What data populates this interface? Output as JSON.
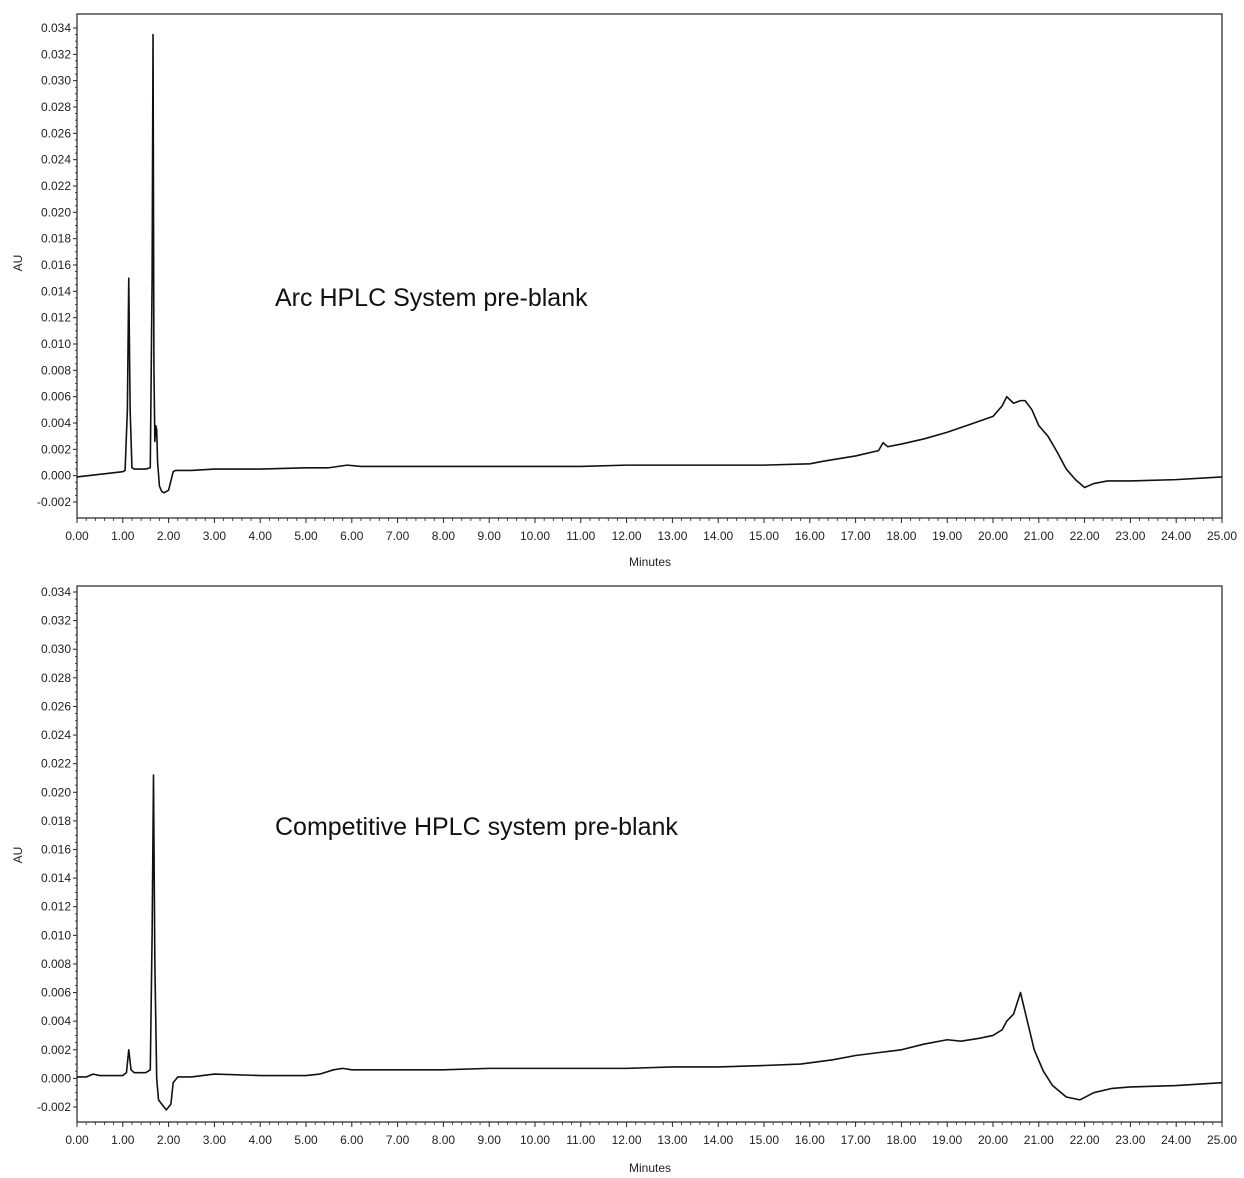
{
  "chart_data": [
    {
      "type": "line",
      "annotation": "Arc HPLC System pre-blank",
      "xlabel": "Minutes",
      "ylabel": "AU",
      "xlim": [
        0,
        25
      ],
      "ylim": [
        -0.003,
        0.034
      ],
      "x_ticks": [
        "0.00",
        "1.00",
        "2.00",
        "3.00",
        "4.00",
        "5.00",
        "6.00",
        "7.00",
        "8.00",
        "9.00",
        "10.00",
        "11.00",
        "12.00",
        "13.00",
        "14.00",
        "15.00",
        "16.00",
        "17.00",
        "18.00",
        "19.00",
        "20.00",
        "21.00",
        "22.00",
        "23.00",
        "24.00",
        "25.00"
      ],
      "y_ticks": [
        "0.034",
        "0.032",
        "0.030",
        "0.028",
        "0.026",
        "0.024",
        "0.022",
        "0.020",
        "0.018",
        "0.016",
        "0.014",
        "0.012",
        "0.010",
        "0.008",
        "0.006",
        "0.004",
        "0.002",
        "0.000",
        "-0.002"
      ],
      "series": [
        {
          "x": [
            0,
            0.5,
            1.0,
            1.05,
            1.1,
            1.13,
            1.16,
            1.2,
            1.25,
            1.5,
            1.6,
            1.64,
            1.66,
            1.68,
            1.7,
            1.72,
            1.74,
            1.76,
            1.8,
            1.85,
            1.9,
            2.0,
            2.1,
            2.15,
            2.2,
            2.5,
            3.0,
            4.0,
            5.0,
            5.5,
            5.9,
            6.2,
            7,
            8,
            9,
            10,
            11,
            12,
            13,
            14,
            15,
            16,
            16.3,
            17,
            17.5,
            17.6,
            17.7,
            18,
            18.5,
            19,
            19.5,
            20,
            20.2,
            20.3,
            20.45,
            20.6,
            20.7,
            20.85,
            21.0,
            21.2,
            21.4,
            21.6,
            21.8,
            22.0,
            22.2,
            22.5,
            23,
            24,
            25
          ],
          "y": [
            -0.0001,
            0.0001,
            0.0003,
            0.0004,
            0.005,
            0.015,
            0.005,
            0.0006,
            0.0005,
            0.0005,
            0.0006,
            0.015,
            0.0335,
            0.008,
            0.0026,
            0.0038,
            0.0035,
            0.001,
            -0.0008,
            -0.0012,
            -0.0013,
            -0.0011,
            0.0003,
            0.0004,
            0.0004,
            0.0004,
            0.0005,
            0.0005,
            0.0006,
            0.0006,
            0.0008,
            0.0007,
            0.0007,
            0.0007,
            0.0007,
            0.0007,
            0.0007,
            0.0008,
            0.0008,
            0.0008,
            0.0008,
            0.0009,
            0.0011,
            0.0015,
            0.0019,
            0.0025,
            0.0022,
            0.0024,
            0.0028,
            0.0033,
            0.0039,
            0.0045,
            0.0053,
            0.006,
            0.0055,
            0.0057,
            0.0057,
            0.005,
            0.0038,
            0.003,
            0.0018,
            0.0005,
            -0.0003,
            -0.0009,
            -0.0006,
            -0.0004,
            -0.0004,
            -0.0003,
            -0.0001
          ]
        }
      ]
    },
    {
      "type": "line",
      "annotation": "Competitive HPLC system pre-blank",
      "xlabel": "Minutes",
      "ylabel": "AU",
      "xlim": [
        0,
        25
      ],
      "ylim": [
        -0.003,
        0.034
      ],
      "x_ticks": [
        "0.00",
        "1.00",
        "2.00",
        "3.00",
        "4.00",
        "5.00",
        "6.00",
        "7.00",
        "8.00",
        "9.00",
        "10.00",
        "11.00",
        "12.00",
        "13.00",
        "14.00",
        "15.00",
        "16.00",
        "17.00",
        "18.00",
        "19.00",
        "20.00",
        "21.00",
        "22.00",
        "23.00",
        "24.00",
        "25.00"
      ],
      "y_ticks": [
        "0.034",
        "0.032",
        "0.030",
        "0.028",
        "0.026",
        "0.024",
        "0.022",
        "0.020",
        "0.018",
        "0.016",
        "0.014",
        "0.012",
        "0.010",
        "0.008",
        "0.006",
        "0.004",
        "0.002",
        "0.000",
        "-0.002"
      ],
      "series": [
        {
          "x": [
            0,
            0.2,
            0.35,
            0.5,
            0.8,
            1.0,
            1.08,
            1.13,
            1.18,
            1.25,
            1.5,
            1.6,
            1.64,
            1.67,
            1.7,
            1.74,
            1.78,
            1.85,
            1.95,
            2.05,
            2.1,
            2.2,
            2.5,
            3.0,
            4.0,
            5.0,
            5.3,
            5.6,
            5.8,
            6.0,
            7,
            8,
            9,
            10,
            11,
            12,
            13,
            14,
            15,
            15.8,
            16.5,
            17,
            17.5,
            18,
            18.5,
            19,
            19.3,
            19.7,
            20.0,
            20.2,
            20.3,
            20.45,
            20.6,
            20.75,
            20.9,
            21.1,
            21.3,
            21.6,
            21.9,
            22.2,
            22.6,
            23,
            24,
            25
          ],
          "y": [
            0.0001,
            0.0001,
            0.0003,
            0.0002,
            0.0002,
            0.0002,
            0.0004,
            0.002,
            0.0006,
            0.0004,
            0.0004,
            0.0006,
            0.01,
            0.0212,
            0.008,
            0.0,
            -0.0015,
            -0.0018,
            -0.0022,
            -0.0018,
            -0.0003,
            0.0001,
            0.0001,
            0.0003,
            0.0002,
            0.0002,
            0.0003,
            0.0006,
            0.0007,
            0.0006,
            0.0006,
            0.0006,
            0.0007,
            0.0007,
            0.0007,
            0.0007,
            0.0008,
            0.0008,
            0.0009,
            0.001,
            0.0013,
            0.0016,
            0.0018,
            0.002,
            0.0024,
            0.0027,
            0.0026,
            0.0028,
            0.003,
            0.0034,
            0.004,
            0.0045,
            0.006,
            0.004,
            0.002,
            0.0005,
            -0.0005,
            -0.0013,
            -0.0015,
            -0.001,
            -0.0007,
            -0.0006,
            -0.0005,
            -0.0003
          ]
        }
      ]
    }
  ]
}
